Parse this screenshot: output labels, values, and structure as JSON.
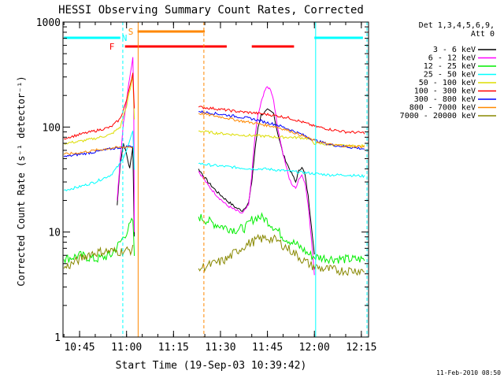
{
  "chart_data": {
    "type": "line",
    "title": "HESSI Observing Summary Count Rates, Corrected",
    "xlabel": "Start Time (19-Sep-03 10:39:42)",
    "ylabel": "Corrected Count Rate (s⁻¹ detector⁻¹)",
    "yscale": "log",
    "ylim": [
      1,
      1000
    ],
    "xlim_minutes": [
      39.7,
      137.3
    ],
    "x_ticks": [
      {
        "m": 45,
        "label": "10:45"
      },
      {
        "m": 60,
        "label": "11:00"
      },
      {
        "m": 75,
        "label": "11:15"
      },
      {
        "m": 90,
        "label": "11:30"
      },
      {
        "m": 105,
        "label": "11:45"
      },
      {
        "m": 120,
        "label": "12:00"
      },
      {
        "m": 135,
        "label": "12:15"
      }
    ],
    "y_ticks": [
      {
        "v": 1,
        "label": "1"
      },
      {
        "v": 10,
        "label": "10"
      },
      {
        "v": 100,
        "label": "100"
      },
      {
        "v": 1000,
        "label": "1000"
      }
    ],
    "legend_header": [
      "Det 1,3,4,5,6,9,",
      "Att 0"
    ],
    "series": [
      {
        "name": "3 - 6 keV",
        "color": "#000000",
        "points": [
          [
            57,
            18
          ],
          [
            58,
            45
          ],
          [
            59,
            70
          ],
          [
            60,
            55
          ],
          [
            61,
            40
          ],
          [
            62,
            65
          ],
          [
            62.5,
            9
          ],
          [
            83,
            40
          ],
          [
            86,
            30
          ],
          [
            89,
            24
          ],
          [
            92,
            20
          ],
          [
            95,
            17
          ],
          [
            97,
            16
          ],
          [
            99,
            19
          ],
          [
            100,
            30
          ],
          [
            101,
            60
          ],
          [
            102,
            100
          ],
          [
            103,
            130
          ],
          [
            105,
            145
          ],
          [
            107,
            135
          ],
          [
            108,
            95
          ],
          [
            110,
            55
          ],
          [
            112,
            40
          ],
          [
            113,
            35
          ],
          [
            114,
            30
          ],
          [
            115,
            38
          ],
          [
            116,
            42
          ],
          [
            117,
            35
          ],
          [
            118,
            22
          ],
          [
            119,
            12
          ],
          [
            120,
            6
          ]
        ]
      },
      {
        "name": "6 - 12 keV",
        "color": "#ff00ff",
        "points": [
          [
            57,
            20
          ],
          [
            58,
            50
          ],
          [
            59,
            110
          ],
          [
            60,
            180
          ],
          [
            61,
            300
          ],
          [
            62,
            460
          ],
          [
            62.3,
            200
          ],
          [
            62.5,
            10
          ],
          [
            83,
            38
          ],
          [
            86,
            28
          ],
          [
            89,
            22
          ],
          [
            92,
            18
          ],
          [
            95,
            16
          ],
          [
            97,
            15
          ],
          [
            99,
            18
          ],
          [
            100,
            35
          ],
          [
            101,
            80
          ],
          [
            102,
            130
          ],
          [
            103,
            170
          ],
          [
            104,
            220
          ],
          [
            105,
            240
          ],
          [
            106,
            230
          ],
          [
            107,
            180
          ],
          [
            108,
            110
          ],
          [
            110,
            55
          ],
          [
            112,
            32
          ],
          [
            113,
            28
          ],
          [
            114,
            26
          ],
          [
            115,
            32
          ],
          [
            116,
            35
          ],
          [
            117,
            30
          ],
          [
            118,
            18
          ],
          [
            119,
            9
          ],
          [
            120,
            4
          ]
        ]
      },
      {
        "name": "12 - 25 keV",
        "color": "#00ee00",
        "points": [
          [
            40,
            5.5
          ],
          [
            45,
            6
          ],
          [
            50,
            5.5
          ],
          [
            55,
            6
          ],
          [
            58,
            8
          ],
          [
            60,
            10
          ],
          [
            62,
            13
          ],
          [
            62.5,
            6
          ],
          [
            83,
            14
          ],
          [
            88,
            12
          ],
          [
            92,
            11
          ],
          [
            95,
            10.5
          ],
          [
            98,
            11
          ],
          [
            100,
            13
          ],
          [
            102,
            14
          ],
          [
            104,
            13.5
          ],
          [
            106,
            12
          ],
          [
            108,
            10.5
          ],
          [
            110,
            9
          ],
          [
            113,
            8
          ],
          [
            116,
            7
          ],
          [
            118,
            6.2
          ],
          [
            120,
            5.8
          ],
          [
            125,
            5.6
          ],
          [
            130,
            5.5
          ],
          [
            136,
            5.5
          ]
        ]
      },
      {
        "name": "25 - 50 keV",
        "color": "#00ffff",
        "points": [
          [
            40,
            25
          ],
          [
            45,
            27
          ],
          [
            50,
            30
          ],
          [
            55,
            35
          ],
          [
            58,
            45
          ],
          [
            60,
            60
          ],
          [
            62,
            90
          ],
          [
            62.5,
            40
          ],
          [
            83,
            45
          ],
          [
            88,
            43
          ],
          [
            92,
            42
          ],
          [
            96,
            41
          ],
          [
            100,
            40
          ],
          [
            104,
            40
          ],
          [
            108,
            39
          ],
          [
            112,
            38
          ],
          [
            116,
            37
          ],
          [
            120,
            36
          ],
          [
            125,
            35
          ],
          [
            130,
            35
          ],
          [
            136,
            34
          ]
        ]
      },
      {
        "name": "50 - 100 keV",
        "color": "#dddd00",
        "points": [
          [
            40,
            70
          ],
          [
            45,
            73
          ],
          [
            50,
            78
          ],
          [
            55,
            85
          ],
          [
            58,
            100
          ],
          [
            60,
            160
          ],
          [
            62,
            300
          ],
          [
            62.5,
            120
          ],
          [
            83,
            92
          ],
          [
            88,
            88
          ],
          [
            92,
            86
          ],
          [
            96,
            84
          ],
          [
            100,
            83
          ],
          [
            104,
            82
          ],
          [
            108,
            80
          ],
          [
            112,
            80
          ],
          [
            116,
            79
          ],
          [
            118,
            78
          ],
          [
            120,
            70
          ],
          [
            125,
            68
          ],
          [
            130,
            66
          ],
          [
            136,
            66
          ]
        ]
      },
      {
        "name": "100 - 300 keV",
        "color": "#ff0000",
        "points": [
          [
            40,
            78
          ],
          [
            45,
            85
          ],
          [
            50,
            92
          ],
          [
            55,
            100
          ],
          [
            58,
            120
          ],
          [
            60,
            180
          ],
          [
            62,
            330
          ],
          [
            62.5,
            150
          ],
          [
            83,
            155
          ],
          [
            88,
            150
          ],
          [
            92,
            145
          ],
          [
            96,
            140
          ],
          [
            100,
            137
          ],
          [
            104,
            133
          ],
          [
            108,
            128
          ],
          [
            112,
            122
          ],
          [
            116,
            112
          ],
          [
            120,
            102
          ],
          [
            125,
            95
          ],
          [
            130,
            90
          ],
          [
            136,
            88
          ]
        ]
      },
      {
        "name": "300 - 800 keV",
        "color": "#0000ff",
        "points": [
          [
            40,
            52
          ],
          [
            45,
            55
          ],
          [
            50,
            58
          ],
          [
            55,
            62
          ],
          [
            58,
            64
          ],
          [
            60,
            65
          ],
          [
            62,
            66
          ],
          [
            83,
            140
          ],
          [
            88,
            135
          ],
          [
            92,
            130
          ],
          [
            96,
            125
          ],
          [
            100,
            120
          ],
          [
            104,
            112
          ],
          [
            108,
            105
          ],
          [
            112,
            95
          ],
          [
            116,
            85
          ],
          [
            120,
            75
          ],
          [
            125,
            68
          ],
          [
            130,
            65
          ],
          [
            136,
            62
          ]
        ]
      },
      {
        "name": "800 - 7000 keV",
        "color": "#ff8800",
        "points": [
          [
            40,
            55
          ],
          [
            45,
            57
          ],
          [
            50,
            60
          ],
          [
            55,
            63
          ],
          [
            58,
            64
          ],
          [
            60,
            65
          ],
          [
            62,
            64
          ],
          [
            83,
            135
          ],
          [
            88,
            128
          ],
          [
            92,
            122
          ],
          [
            96,
            115
          ],
          [
            100,
            110
          ],
          [
            104,
            105
          ],
          [
            108,
            100
          ],
          [
            112,
            92
          ],
          [
            116,
            83
          ],
          [
            120,
            74
          ],
          [
            125,
            68
          ],
          [
            130,
            66
          ],
          [
            136,
            65
          ]
        ]
      },
      {
        "name": "7000 - 20000 keV",
        "color": "#888800",
        "points": [
          [
            40,
            4.5
          ],
          [
            45,
            5.5
          ],
          [
            48,
            6.2
          ],
          [
            52,
            6.5
          ],
          [
            55,
            6.6
          ],
          [
            58,
            6.5
          ],
          [
            62,
            6.8
          ],
          [
            83,
            4.5
          ],
          [
            88,
            5
          ],
          [
            92,
            5.5
          ],
          [
            95,
            6.5
          ],
          [
            98,
            7.5
          ],
          [
            102,
            8.5
          ],
          [
            105,
            8.8
          ],
          [
            108,
            8.3
          ],
          [
            110,
            7.5
          ],
          [
            113,
            6.5
          ],
          [
            116,
            5.5
          ],
          [
            119,
            4.8
          ],
          [
            122,
            4.5
          ],
          [
            128,
            4.3
          ],
          [
            136,
            4.3
          ]
        ]
      }
    ],
    "annotations": {
      "flags": [
        {
          "letter": "S",
          "color": "#ff8800",
          "segments": [
            [
              63.5,
              85
            ]
          ]
        },
        {
          "letter": "N",
          "color": "#00ffff",
          "segments": [
            [
              40,
              58
            ],
            [
              120,
              135.5
            ]
          ]
        },
        {
          "letter": "F",
          "color": "#ff0000",
          "segments": [
            [
              59.5,
              92
            ],
            [
              100,
              113.5
            ]
          ]
        }
      ],
      "vlines": [
        {
          "m": 58.8,
          "color": "#00ffff",
          "style": "dashed"
        },
        {
          "m": 63.7,
          "color": "#ff8800",
          "style": "solid"
        },
        {
          "m": 84.7,
          "color": "#ff8800",
          "style": "dashed"
        },
        {
          "m": 120.4,
          "color": "#00ffff",
          "style": "solid"
        },
        {
          "m": 136.8,
          "color": "#00ffff",
          "style": "dashed"
        }
      ]
    },
    "footer": "11-Feb-2010 08:50"
  }
}
